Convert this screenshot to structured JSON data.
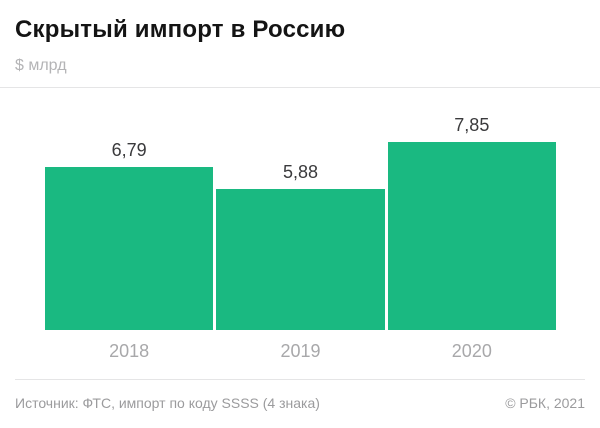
{
  "header": {
    "title": "Скрытый импорт в Россию",
    "subtitle": "$ млрд"
  },
  "chart_data": {
    "type": "bar",
    "title": "Скрытый импорт в Россию",
    "ylabel": "$ млрд",
    "categories": [
      "2018",
      "2019",
      "2020"
    ],
    "values": [
      6.79,
      5.88,
      7.85
    ],
    "value_labels": [
      "6,79",
      "5,88",
      "7,85"
    ],
    "ylim": [
      0,
      8.2
    ],
    "grid": false,
    "legend": false,
    "bar_color": "#1ab981"
  },
  "footer": {
    "source": "Источник: ФТС, импорт по коду SSSS (4 знака)",
    "copyright": "© РБК, 2021"
  },
  "colors": {
    "bar": "#1ab981",
    "title": "#141414",
    "value_label": "#3a3a3c",
    "axis_label": "#a8a8aa",
    "subtitle": "#b4b4b6",
    "muted": "#9b9b9d",
    "divider": "#e5e5e6",
    "background": "#ffffff"
  }
}
